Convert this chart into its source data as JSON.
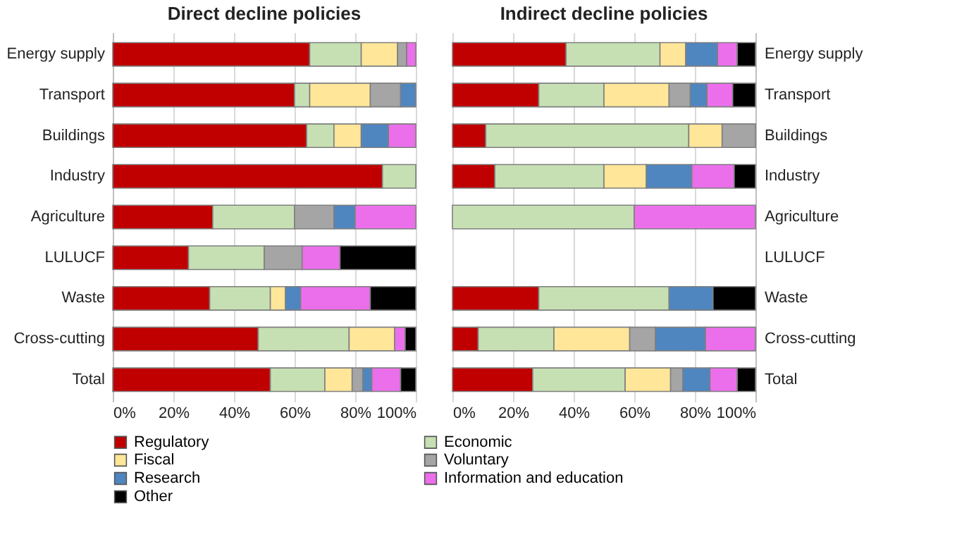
{
  "chart_data": [
    {
      "type": "bar",
      "orientation": "horizontal",
      "stacked": true,
      "title": "Direct decline policies",
      "categories": [
        "Energy supply",
        "Transport",
        "Buildings",
        "Industry",
        "Agriculture",
        "LULUCF",
        "Waste",
        "Cross-cutting",
        "Total"
      ],
      "series": [
        {
          "name": "Regulatory",
          "color": "#c00000",
          "values": [
            65,
            60,
            64,
            89,
            33,
            25,
            32,
            48,
            52
          ]
        },
        {
          "name": "Economic",
          "color": "#c6e0b4",
          "values": [
            17,
            5,
            9,
            11,
            27,
            25,
            20,
            30,
            18
          ]
        },
        {
          "name": "Fiscal",
          "color": "#ffe699",
          "values": [
            12,
            20,
            9,
            null,
            null,
            null,
            5,
            15,
            9
          ]
        },
        {
          "name": "Voluntary",
          "color": "#a5a5a5",
          "values": [
            3,
            10,
            null,
            null,
            13,
            12.5,
            null,
            null,
            3.5
          ]
        },
        {
          "name": "Research",
          "color": "#4f86c0",
          "values": [
            null,
            5,
            9,
            null,
            7,
            null,
            5,
            null,
            3
          ]
        },
        {
          "name": "Information and education",
          "color": "#eb6feb",
          "values": [
            3,
            null,
            9,
            null,
            20,
            12.5,
            23,
            3.5,
            9.5
          ]
        },
        {
          "name": "Other",
          "color": "#000000",
          "values": [
            null,
            null,
            null,
            null,
            null,
            25,
            15,
            3.5,
            5
          ]
        }
      ],
      "xlim": [
        0,
        100
      ],
      "xticks": [
        {
          "value": 0,
          "label": "0%"
        },
        {
          "value": 20,
          "label": "20%"
        },
        {
          "value": 40,
          "label": "40%"
        },
        {
          "value": 60,
          "label": "60%"
        },
        {
          "value": 80,
          "label": "80%"
        },
        {
          "value": 100,
          "label": "100%"
        }
      ],
      "grid": "x",
      "legend": "bottom"
    },
    {
      "type": "bar",
      "orientation": "horizontal",
      "stacked": true,
      "title": "Indirect decline policies",
      "categories": [
        "Energy supply",
        "Transport",
        "Buildings",
        "Industry",
        "Agriculture",
        "LULUCF",
        "Waste",
        "Cross-cutting",
        "Total"
      ],
      "series": [
        {
          "name": "Regulatory",
          "color": "#c00000",
          "values": [
            37.5,
            28.5,
            11,
            14,
            null,
            null,
            28.5,
            8.5,
            26.5
          ]
        },
        {
          "name": "Economic",
          "color": "#c6e0b4",
          "values": [
            31,
            21.5,
            67,
            36,
            60,
            null,
            43,
            25,
            30.5
          ]
        },
        {
          "name": "Fiscal",
          "color": "#ffe699",
          "values": [
            8.5,
            21.5,
            11,
            14,
            null,
            null,
            null,
            25,
            15
          ]
        },
        {
          "name": "Voluntary",
          "color": "#a5a5a5",
          "values": [
            null,
            7,
            11,
            null,
            null,
            null,
            null,
            8.5,
            4
          ]
        },
        {
          "name": "Research",
          "color": "#4f86c0",
          "values": [
            10.5,
            5.5,
            null,
            15,
            null,
            null,
            14.5,
            16.5,
            9
          ]
        },
        {
          "name": "Information and education",
          "color": "#eb6feb",
          "values": [
            6.5,
            8.5,
            null,
            14,
            40,
            null,
            null,
            16.5,
            9
          ]
        },
        {
          "name": "Other",
          "color": "#000000",
          "values": [
            6,
            7.5,
            null,
            7,
            null,
            null,
            14,
            null,
            6
          ]
        }
      ],
      "xlim": [
        0,
        100
      ],
      "xticks": [
        {
          "value": 0,
          "label": "0%"
        },
        {
          "value": 20,
          "label": "20%"
        },
        {
          "value": 40,
          "label": "40%"
        },
        {
          "value": 60,
          "label": "60%"
        },
        {
          "value": 80,
          "label": "80%"
        },
        {
          "value": 100,
          "label": "100%"
        }
      ],
      "grid": "x",
      "legend": "bottom"
    }
  ]
}
